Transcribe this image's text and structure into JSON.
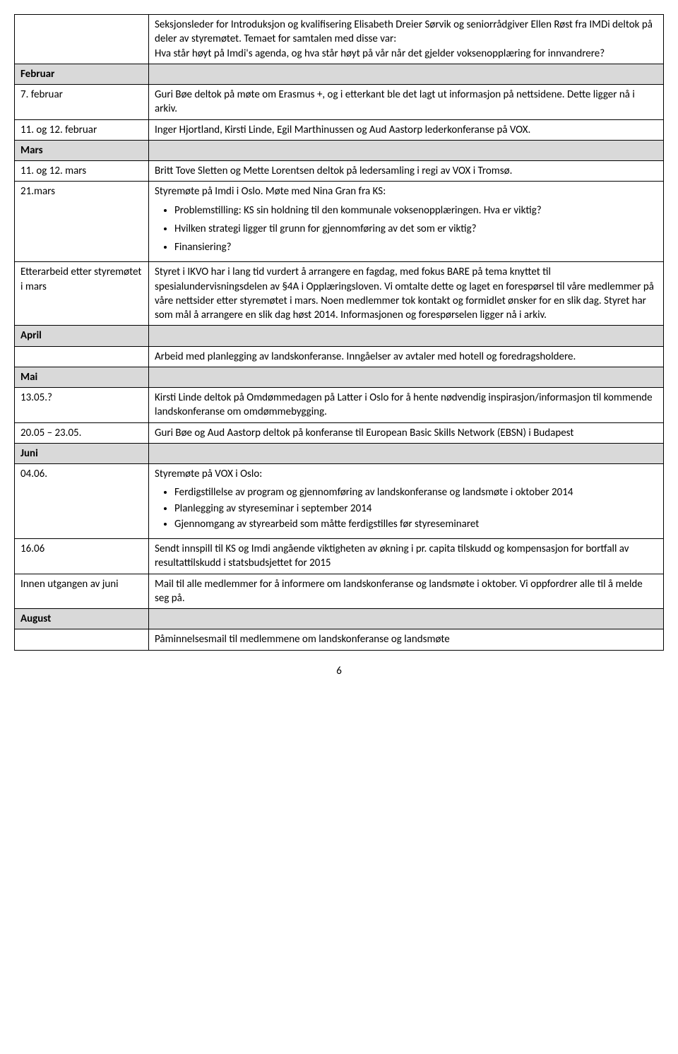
{
  "rows": {
    "intro_content": "Seksjonsleder for Introduksjon og kvalifisering Elisabeth Dreier Sørvik og seniorrådgiver Ellen Røst fra IMDi deltok på deler av styremøtet. Temaet for samtalen med disse var:\nHva står høyt på Imdi's agenda, og hva står høyt på vår når det gjelder voksenopplæring for innvandrere?",
    "februar_label": "Februar",
    "feb7_date": "7. februar",
    "feb7_content": "Guri Bøe deltok på møte om Erasmus +, og i etterkant ble det lagt ut informasjon på nettsidene. Dette ligger nå i arkiv.",
    "feb11_date": "11. og 12. februar",
    "feb11_content": "Inger Hjortland, Kirsti Linde, Egil Marthinussen og Aud Aastorp lederkonferanse på VOX.",
    "mars_label": "Mars",
    "mars11_date": "11. og 12. mars",
    "mars11_content": "Britt Tove Sletten og Mette Lorentsen deltok på ledersamling i regi av VOX i Tromsø.",
    "mars21_date": "21.mars",
    "mars21_intro": "Styremøte på Imdi i Oslo. Møte med Nina Gran fra KS:",
    "mars21_bullet1": "Problemstilling: KS sin holdning til den kommunale voksenopplæringen. Hva er viktig?",
    "mars21_bullet2": "Hvilken strategi ligger til grunn for gjennomføring av det som er viktig?",
    "mars21_bullet3": "Finansiering?",
    "etterarbeid_label": "Etterarbeid etter styremøtet i mars",
    "etterarbeid_content": "Styret i IKVO har i lang tid vurdert å arrangere en fagdag, med fokus BARE på tema knyttet til spesialundervisningsdelen av §4A i Opplæringsloven. Vi omtalte dette og laget en forespørsel til våre medlemmer på våre nettsider etter styremøtet i mars. Noen medlemmer tok kontakt og formidlet ønsker for en slik dag. Styret har som mål å arrangere en slik dag høst 2014. Informasjonen og forespørselen ligger nå i arkiv.",
    "april_label": "April",
    "april_content": "Arbeid med planlegging av landskonferanse. Inngåelser av avtaler med hotell og foredragsholdere.",
    "mai_label": "Mai",
    "mai13_date": "13.05.?",
    "mai13_content": "Kirsti Linde deltok på Omdømmedagen på Latter i Oslo for å hente nødvendig inspirasjon/informasjon til kommende landskonferanse om omdømmebygging.",
    "mai20_date": "20.05 – 23.05.",
    "mai20_content": "Guri Bøe og Aud Aastorp deltok på konferanse til European Basic Skills Network (EBSN) i Budapest",
    "juni_label": "Juni",
    "jun04_date": "04.06.",
    "jun04_intro": "Styremøte på VOX i Oslo:",
    "jun04_bullet1": "Ferdigstillelse av program og gjennomføring av landskonferanse og landsmøte i oktober 2014",
    "jun04_bullet2": "Planlegging av styreseminar i september 2014",
    "jun04_bullet3": "Gjennomgang av styrearbeid som måtte ferdigstilles før styreseminaret",
    "jun16_date": "16.06",
    "jun16_content": "Sendt innspill til KS og Imdi angående viktigheten av økning i pr. capita tilskudd og kompensasjon for bortfall av resultattilskudd i statsbudsjettet for 2015",
    "innen_label": "Innen utgangen av juni",
    "innen_content": "Mail til alle medlemmer for å informere om landskonferanse og landsmøte i oktober. Vi oppfordrer alle til å melde seg på.",
    "august_label": "August",
    "august_content": "Påminnelsesmail til medlemmene om landskonferanse og landsmøte"
  },
  "page_number": "6"
}
